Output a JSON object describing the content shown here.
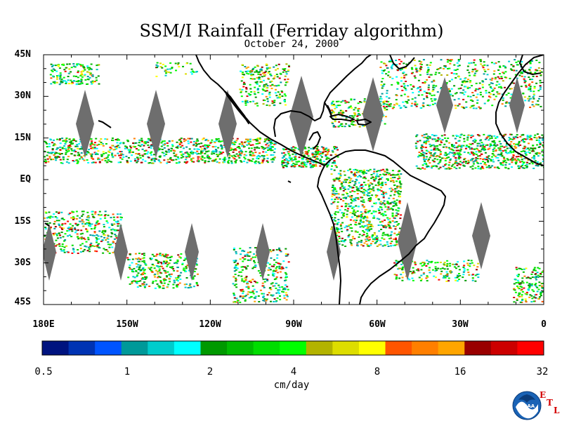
{
  "title": "SSM/I Rainfall (Ferriday algorithm)",
  "date": "October 24, 2000",
  "latitude_labels": [
    "45N",
    "30N",
    "15N",
    "EQ",
    "15S",
    "30S",
    "45S"
  ],
  "longitude_labels": [
    "180E",
    "150W",
    "120W",
    "90W",
    "60W",
    "30W",
    "0"
  ],
  "map_extent": {
    "lon_min": -180,
    "lon_max": 0,
    "lat_min": -45,
    "lat_max": 45
  },
  "colorbar": {
    "colors": [
      "#00137f",
      "#0033b3",
      "#0054ff",
      "#009999",
      "#00cccc",
      "#00ffff",
      "#009900",
      "#00bb00",
      "#00dd00",
      "#00ff00",
      "#b3b300",
      "#dddd00",
      "#ffff00",
      "#ff5500",
      "#ff7f00",
      "#ffa500",
      "#990000",
      "#cc0000",
      "#ff0000"
    ],
    "tick_labels": [
      "0.5",
      "1",
      "2",
      "4",
      "8",
      "16",
      "32"
    ],
    "units": "cm/day"
  },
  "orbit_gap_color": "#6e6e6e",
  "logo": {
    "name": "NOAA",
    "letters": [
      "E",
      "T",
      "L"
    ]
  }
}
